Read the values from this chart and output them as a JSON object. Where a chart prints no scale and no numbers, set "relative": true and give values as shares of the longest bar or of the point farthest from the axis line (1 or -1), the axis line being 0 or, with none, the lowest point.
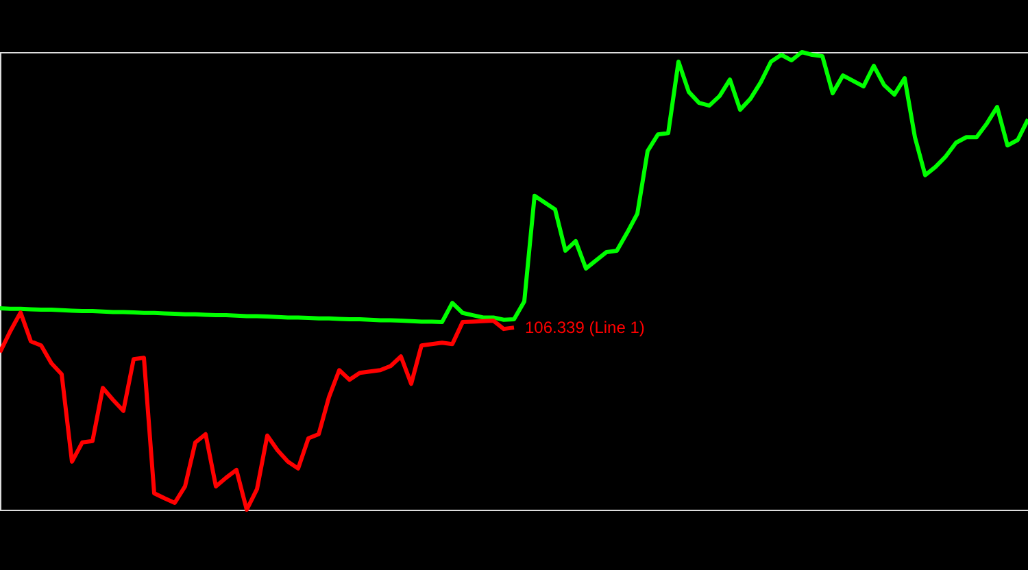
{
  "chart_data": {
    "type": "line",
    "relative": true,
    "categories": [
      null,
      null,
      null,
      null,
      null,
      null,
      null,
      null,
      null,
      null,
      null,
      null,
      null,
      null,
      null,
      null,
      null,
      null,
      null,
      null,
      null,
      null,
      null,
      null,
      null,
      null,
      null,
      null,
      null,
      null,
      null,
      null,
      null,
      null,
      null,
      null,
      null,
      null,
      null,
      null,
      null,
      null,
      null,
      null,
      null,
      null,
      null,
      null,
      null,
      null,
      null,
      null,
      null,
      null,
      null,
      null,
      null,
      null,
      null,
      null,
      null,
      null,
      null,
      null,
      null,
      null,
      null,
      null,
      null,
      null,
      null,
      null,
      null,
      null,
      null,
      null,
      null,
      null,
      null,
      null,
      null,
      null,
      null,
      null,
      null,
      null,
      null,
      null,
      null,
      null,
      null,
      null,
      null,
      null,
      null,
      null,
      null,
      null,
      null,
      null,
      null
    ],
    "series": [
      {
        "color": "#00ff00",
        "values": [
          0.44,
          0.439,
          0.439,
          0.438,
          0.437,
          0.437,
          0.436,
          0.435,
          0.434,
          0.434,
          0.433,
          0.432,
          0.432,
          0.431,
          0.43,
          0.43,
          0.429,
          0.428,
          0.427,
          0.427,
          0.426,
          0.425,
          0.425,
          0.424,
          0.423,
          0.423,
          0.422,
          0.421,
          0.42,
          0.42,
          0.419,
          0.418,
          0.418,
          0.417,
          0.416,
          0.416,
          0.415,
          0.414,
          0.414,
          0.413,
          0.412,
          0.411,
          0.411,
          0.41,
          0.452,
          0.43,
          0.425,
          0.42,
          0.42,
          0.415,
          0.416,
          0.455,
          0.686,
          0.671,
          0.656,
          0.566,
          0.587,
          0.527,
          0.545,
          0.563,
          0.566,
          0.605,
          0.647,
          0.784,
          0.82,
          0.823,
          0.979,
          0.913,
          0.889,
          0.883,
          0.904,
          0.94,
          0.874,
          0.898,
          0.934,
          0.979,
          0.994,
          0.982,
          1.0,
          0.994,
          0.991,
          0.91,
          0.949,
          0.937,
          0.925,
          0.97,
          0.928,
          0.907,
          0.943,
          0.814,
          0.731,
          0.749,
          0.772,
          0.802,
          0.814,
          0.814,
          0.844,
          0.88,
          0.796,
          0.808,
          0.853
        ]
      },
      {
        "color": "#ff0000",
        "values": [
          0.344,
          0.39,
          0.431,
          0.368,
          0.359,
          0.32,
          0.296,
          0.105,
          0.147,
          0.15,
          0.266,
          0.24,
          0.216,
          0.329,
          0.332,
          0.036,
          0.025,
          0.015,
          0.051,
          0.147,
          0.165,
          0.051,
          0.07,
          0.087,
          0.0,
          0.045,
          0.162,
          0.13,
          0.105,
          0.09,
          0.156,
          0.165,
          0.246,
          0.305,
          0.284,
          0.299,
          0.302,
          0.305,
          0.314,
          0.335,
          0.275,
          0.359,
          0.362,
          0.365,
          0.362,
          0.41,
          0.411,
          0.412,
          0.413,
          0.395,
          0.398,
          null,
          null,
          null,
          null,
          null,
          null,
          null,
          null,
          null,
          null,
          null,
          null,
          null,
          null,
          null,
          null,
          null,
          null,
          null,
          null,
          null,
          null,
          null,
          null,
          null,
          null,
          null,
          null,
          null,
          null,
          null,
          null,
          null,
          null,
          null,
          null,
          null,
          null,
          null,
          null,
          null,
          null,
          null,
          null,
          null,
          null,
          null,
          null,
          null,
          null
        ]
      }
    ],
    "annotations": [
      {
        "text": "106.339 (Line 1)"
      }
    ]
  }
}
